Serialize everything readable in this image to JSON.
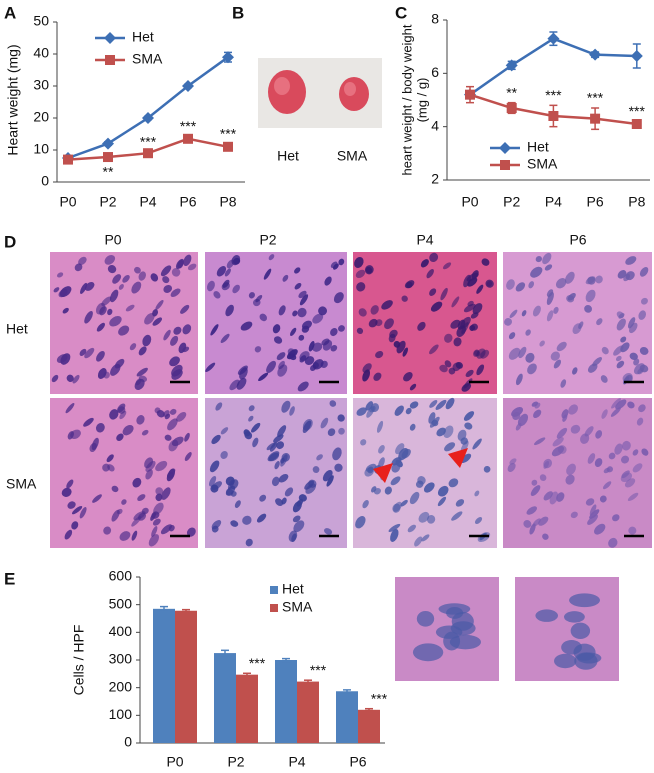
{
  "panel_labels": [
    "A",
    "B",
    "C",
    "D",
    "E"
  ],
  "panel_b": {
    "labels": [
      "Het",
      "SMA"
    ]
  },
  "panel_d": {
    "columns": [
      "P0",
      "P2",
      "P4",
      "P6"
    ],
    "rows": [
      "Het",
      "SMA"
    ]
  },
  "chart_data": [
    {
      "type": "line",
      "ylabel": [
        "Heart weight (mg)"
      ],
      "categories": [
        "P0",
        "P2",
        "P4",
        "P6",
        "P8"
      ],
      "series": [
        {
          "name": "Het",
          "color": "#3d6fb4",
          "marker": "diamond",
          "values": [
            7.5,
            12,
            20,
            30,
            39
          ],
          "errors": [
            0.5,
            0.5,
            0.5,
            0.5,
            1.5
          ]
        },
        {
          "name": "SMA",
          "color": "#c0504d",
          "marker": "square",
          "values": [
            7,
            7.8,
            9,
            13.5,
            11
          ],
          "errors": [
            0.5,
            0.5,
            0.5,
            0.8,
            1
          ]
        }
      ],
      "significance": [
        null,
        "**",
        "***",
        "***",
        "***"
      ],
      "ylim": [
        0,
        50
      ],
      "yticks": [
        0,
        10,
        20,
        30,
        40,
        50
      ]
    },
    {
      "type": "line",
      "ylabel": [
        "heart weight / body weight",
        "(mg / g)"
      ],
      "categories": [
        "P0",
        "P2",
        "P4",
        "P6",
        "P8"
      ],
      "series": [
        {
          "name": "Het",
          "color": "#3d6fb4",
          "marker": "diamond",
          "values": [
            5.2,
            6.3,
            7.3,
            6.7,
            6.65
          ],
          "errors": [
            0.1,
            0.15,
            0.25,
            0.1,
            0.45
          ]
        },
        {
          "name": "SMA",
          "color": "#c0504d",
          "marker": "square",
          "values": [
            5.2,
            4.7,
            4.4,
            4.3,
            4.1
          ],
          "errors": [
            0.3,
            0.2,
            0.4,
            0.4,
            0.1
          ]
        }
      ],
      "significance": [
        null,
        "**",
        "***",
        "***",
        "***"
      ],
      "ylim": [
        2,
        8
      ],
      "yticks": [
        2,
        4,
        6,
        8
      ]
    },
    {
      "type": "bar",
      "ylabel": [
        "Cells / HPF"
      ],
      "categories": [
        "P0",
        "P2",
        "P4",
        "P6"
      ],
      "series": [
        {
          "name": "Het",
          "color": "#4f81bd",
          "values": [
            485,
            325,
            300,
            187
          ],
          "errors": [
            8,
            10,
            5,
            5
          ]
        },
        {
          "name": "SMA",
          "color": "#c0504d",
          "values": [
            478,
            247,
            222,
            120
          ],
          "errors": [
            4,
            5,
            5,
            4
          ]
        }
      ],
      "significance": [
        null,
        "***",
        "***",
        "***"
      ],
      "ylim": [
        0,
        600
      ],
      "yticks": [
        0,
        100,
        200,
        300,
        400,
        500,
        600
      ]
    }
  ]
}
